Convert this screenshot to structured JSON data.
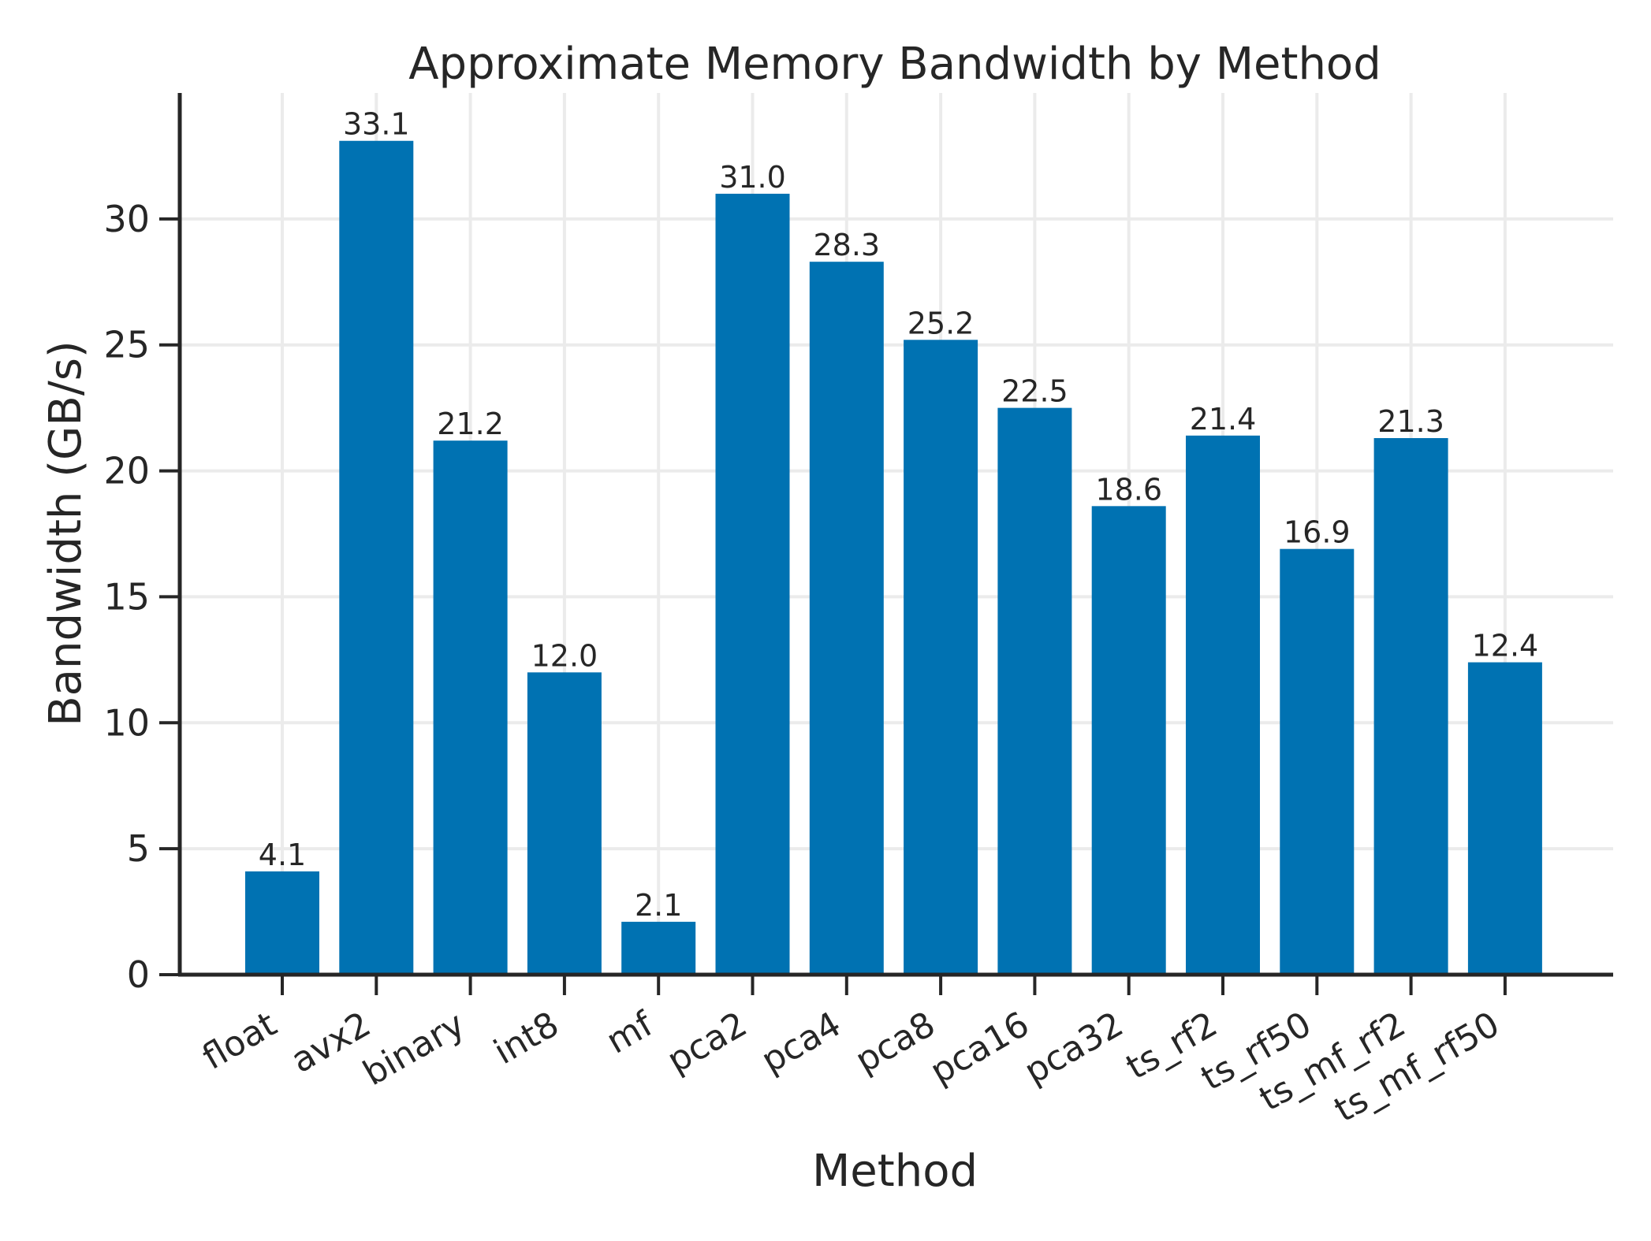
{
  "chart_data": {
    "type": "bar",
    "title": "Approximate Memory Bandwidth by Method",
    "xlabel": "Method",
    "ylabel": "Bandwidth (GB/s)",
    "categories": [
      "float",
      "avx2",
      "binary",
      "int8",
      "mf",
      "pca2",
      "pca4",
      "pca8",
      "pca16",
      "pca32",
      "ts_rf2",
      "ts_rf50",
      "ts_mf_rf2",
      "ts_mf_rf50"
    ],
    "values": [
      4.1,
      33.1,
      21.2,
      12.0,
      2.1,
      31.0,
      28.3,
      25.2,
      22.5,
      18.6,
      21.4,
      16.9,
      21.3,
      12.4
    ],
    "value_labels": [
      "4.1",
      "33.1",
      "21.2",
      "12.0",
      "2.1",
      "31.0",
      "28.3",
      "25.2",
      "22.5",
      "18.6",
      "21.4",
      "16.9",
      "21.3",
      "12.4"
    ],
    "yticks": [
      0,
      5,
      10,
      15,
      20,
      25,
      30
    ],
    "ylim": [
      0,
      35
    ],
    "grid": true,
    "bar_color": "#0072B2",
    "grid_color": "#ebebeb",
    "axis_color": "#262626"
  }
}
